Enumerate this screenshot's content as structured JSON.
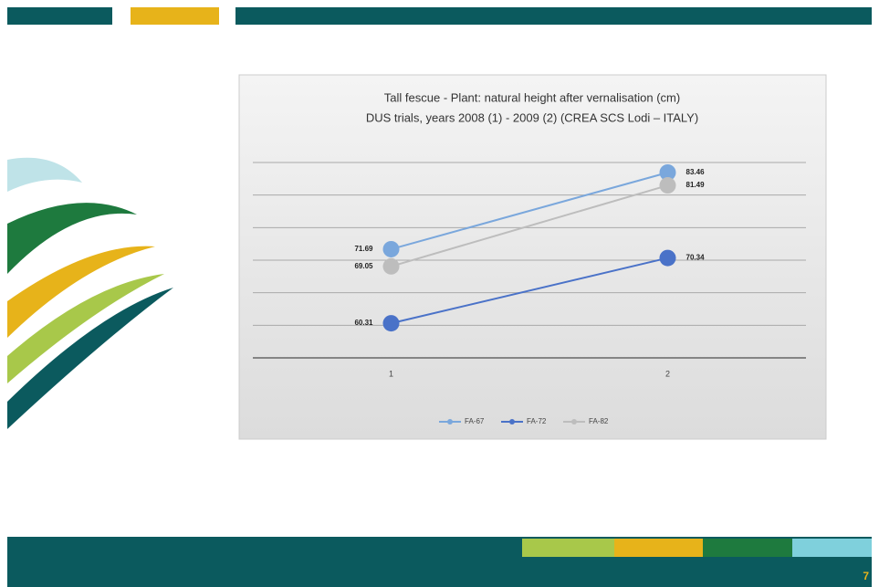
{
  "chart_data": {
    "type": "line",
    "title": "Tall fescue - Plant: natural height after vernalisation (cm)",
    "subtitle": "DUS trials, years 2008 (1) - 2009 (2) (CREA SCS Lodi – ITALY)",
    "categories": [
      "1",
      "2"
    ],
    "series": [
      {
        "name": "FA-67",
        "color": "#7aa7dc",
        "values": [
          71.69,
          83.46
        ]
      },
      {
        "name": "FA-72",
        "color": "#4a72c8",
        "values": [
          60.31,
          70.34
        ]
      },
      {
        "name": "FA-82",
        "color": "#bdbdbd",
        "values": [
          69.05,
          81.49
        ]
      }
    ],
    "ylim": [
      55,
      85
    ],
    "yticks": [
      55,
      60,
      65,
      70,
      75,
      80,
      85
    ],
    "grid": true,
    "legend": "bottom"
  },
  "page_number": "7"
}
